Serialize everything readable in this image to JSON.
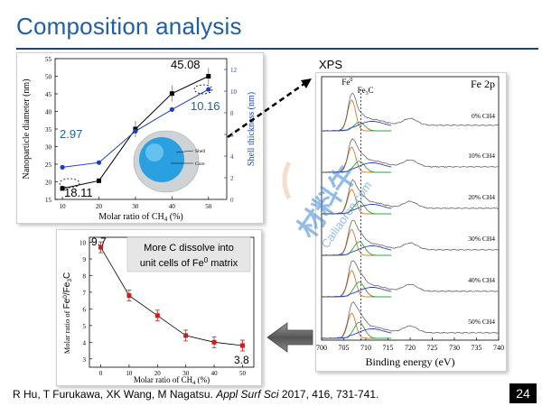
{
  "slide": {
    "title": "Composition analysis",
    "page_number": "24"
  },
  "citation": {
    "authors": "R Hu, T Furukawa, XK Wang, M Nagatsu. ",
    "journal": "Appl Surf Sci",
    "rest": " 2017, 416, 731-741."
  },
  "colors": {
    "title": "#1f5fa8",
    "rule": "#1f3f86",
    "nanoparticle_series": "#000000",
    "shell_series": "#1f3fbf",
    "ratio_series": "#d11a1a",
    "callout_black": "#000000",
    "callout_blue": "#1f5fa8"
  },
  "watermark": {
    "text_main": "材料牛",
    "text_sub": "Cailiaoren.com"
  },
  "chart_data": [
    {
      "type": "line",
      "x": [
        10,
        20,
        30,
        40,
        50
      ],
      "xlabel": "Molar ratio of CH4 (%)",
      "xlim": [
        8,
        55
      ],
      "xticks": [
        10,
        20,
        30,
        40,
        50
      ],
      "series": [
        {
          "axis": "left",
          "marker": "square",
          "values": [
            18.11,
            20.3,
            35.0,
            45.08,
            50.0
          ]
        },
        {
          "axis": "right",
          "marker": "circle",
          "values": [
            2.97,
            3.4,
            6.3,
            8.3,
            10.16
          ]
        }
      ],
      "ylabel_left": "Nanoparticle diameter (nm)",
      "ylim_left": [
        15,
        55
      ],
      "yticks_left": [
        15,
        20,
        25,
        30,
        35,
        40,
        45,
        50,
        55
      ],
      "ylabel_right": "Shell thickness (nm)",
      "ylim_right": [
        0,
        13
      ],
      "yticks_right": [
        0,
        2,
        4,
        6,
        8,
        10,
        12
      ],
      "annotations": {
        "top_black": "45.08",
        "top_blue": "10.16",
        "left_blue": "2.97",
        "bottom_black": "18.11"
      },
      "inset_legend": [
        "Shell",
        "Core"
      ]
    },
    {
      "type": "line",
      "x": [
        0,
        10,
        20,
        30,
        40,
        50
      ],
      "values": [
        9.7,
        6.8,
        5.6,
        4.4,
        4.0,
        3.8
      ],
      "xlabel": "Molar ratio of CH4 (%)",
      "xlim": [
        -4,
        54
      ],
      "xticks": [
        0,
        10,
        20,
        30,
        40,
        50
      ],
      "ylabel": "Molar ratio of Fe0/Fe3C",
      "ylim": [
        2.5,
        10.3
      ],
      "yticks": [
        3,
        4,
        5,
        6,
        7,
        8,
        9,
        10
      ],
      "annotations": {
        "first": "9.7",
        "last": "3.8"
      },
      "callout": {
        "line1": "More C dissolve into",
        "line2": "unit cells of Fe",
        "line2_sup": "0",
        "line2_end": " matrix"
      }
    },
    {
      "type": "line",
      "title_label": "XPS",
      "panel_label": "Fe 2p",
      "xlabel": "Binding energy (eV)",
      "xlim": [
        700,
        740
      ],
      "xticks": [
        700,
        705,
        710,
        715,
        720,
        725,
        730,
        735,
        740
      ],
      "peak_labels": {
        "fe0": "Fe",
        "fe0_sup": "0",
        "fe3c": "Fe",
        "fe3c_sub": "3",
        "fe3c_end": "C"
      },
      "fe0_position": 706.8,
      "fe3c_position": 708.5,
      "dotted_line_position": 708.9,
      "spectra": [
        {
          "label": "0% CH4",
          "fe0_peak": 1.0,
          "fe3c_peak": 0.28
        },
        {
          "label": "10% CH4",
          "fe0_peak": 0.82,
          "fe3c_peak": 0.36
        },
        {
          "label": "20% CH4",
          "fe0_peak": 0.8,
          "fe3c_peak": 0.4
        },
        {
          "label": "30% CH4",
          "fe0_peak": 0.84,
          "fe3c_peak": 0.44
        },
        {
          "label": "40% CH4",
          "fe0_peak": 0.86,
          "fe3c_peak": 0.48
        },
        {
          "label": "50% CH4",
          "fe0_peak": 0.82,
          "fe3c_peak": 0.52
        }
      ]
    }
  ]
}
